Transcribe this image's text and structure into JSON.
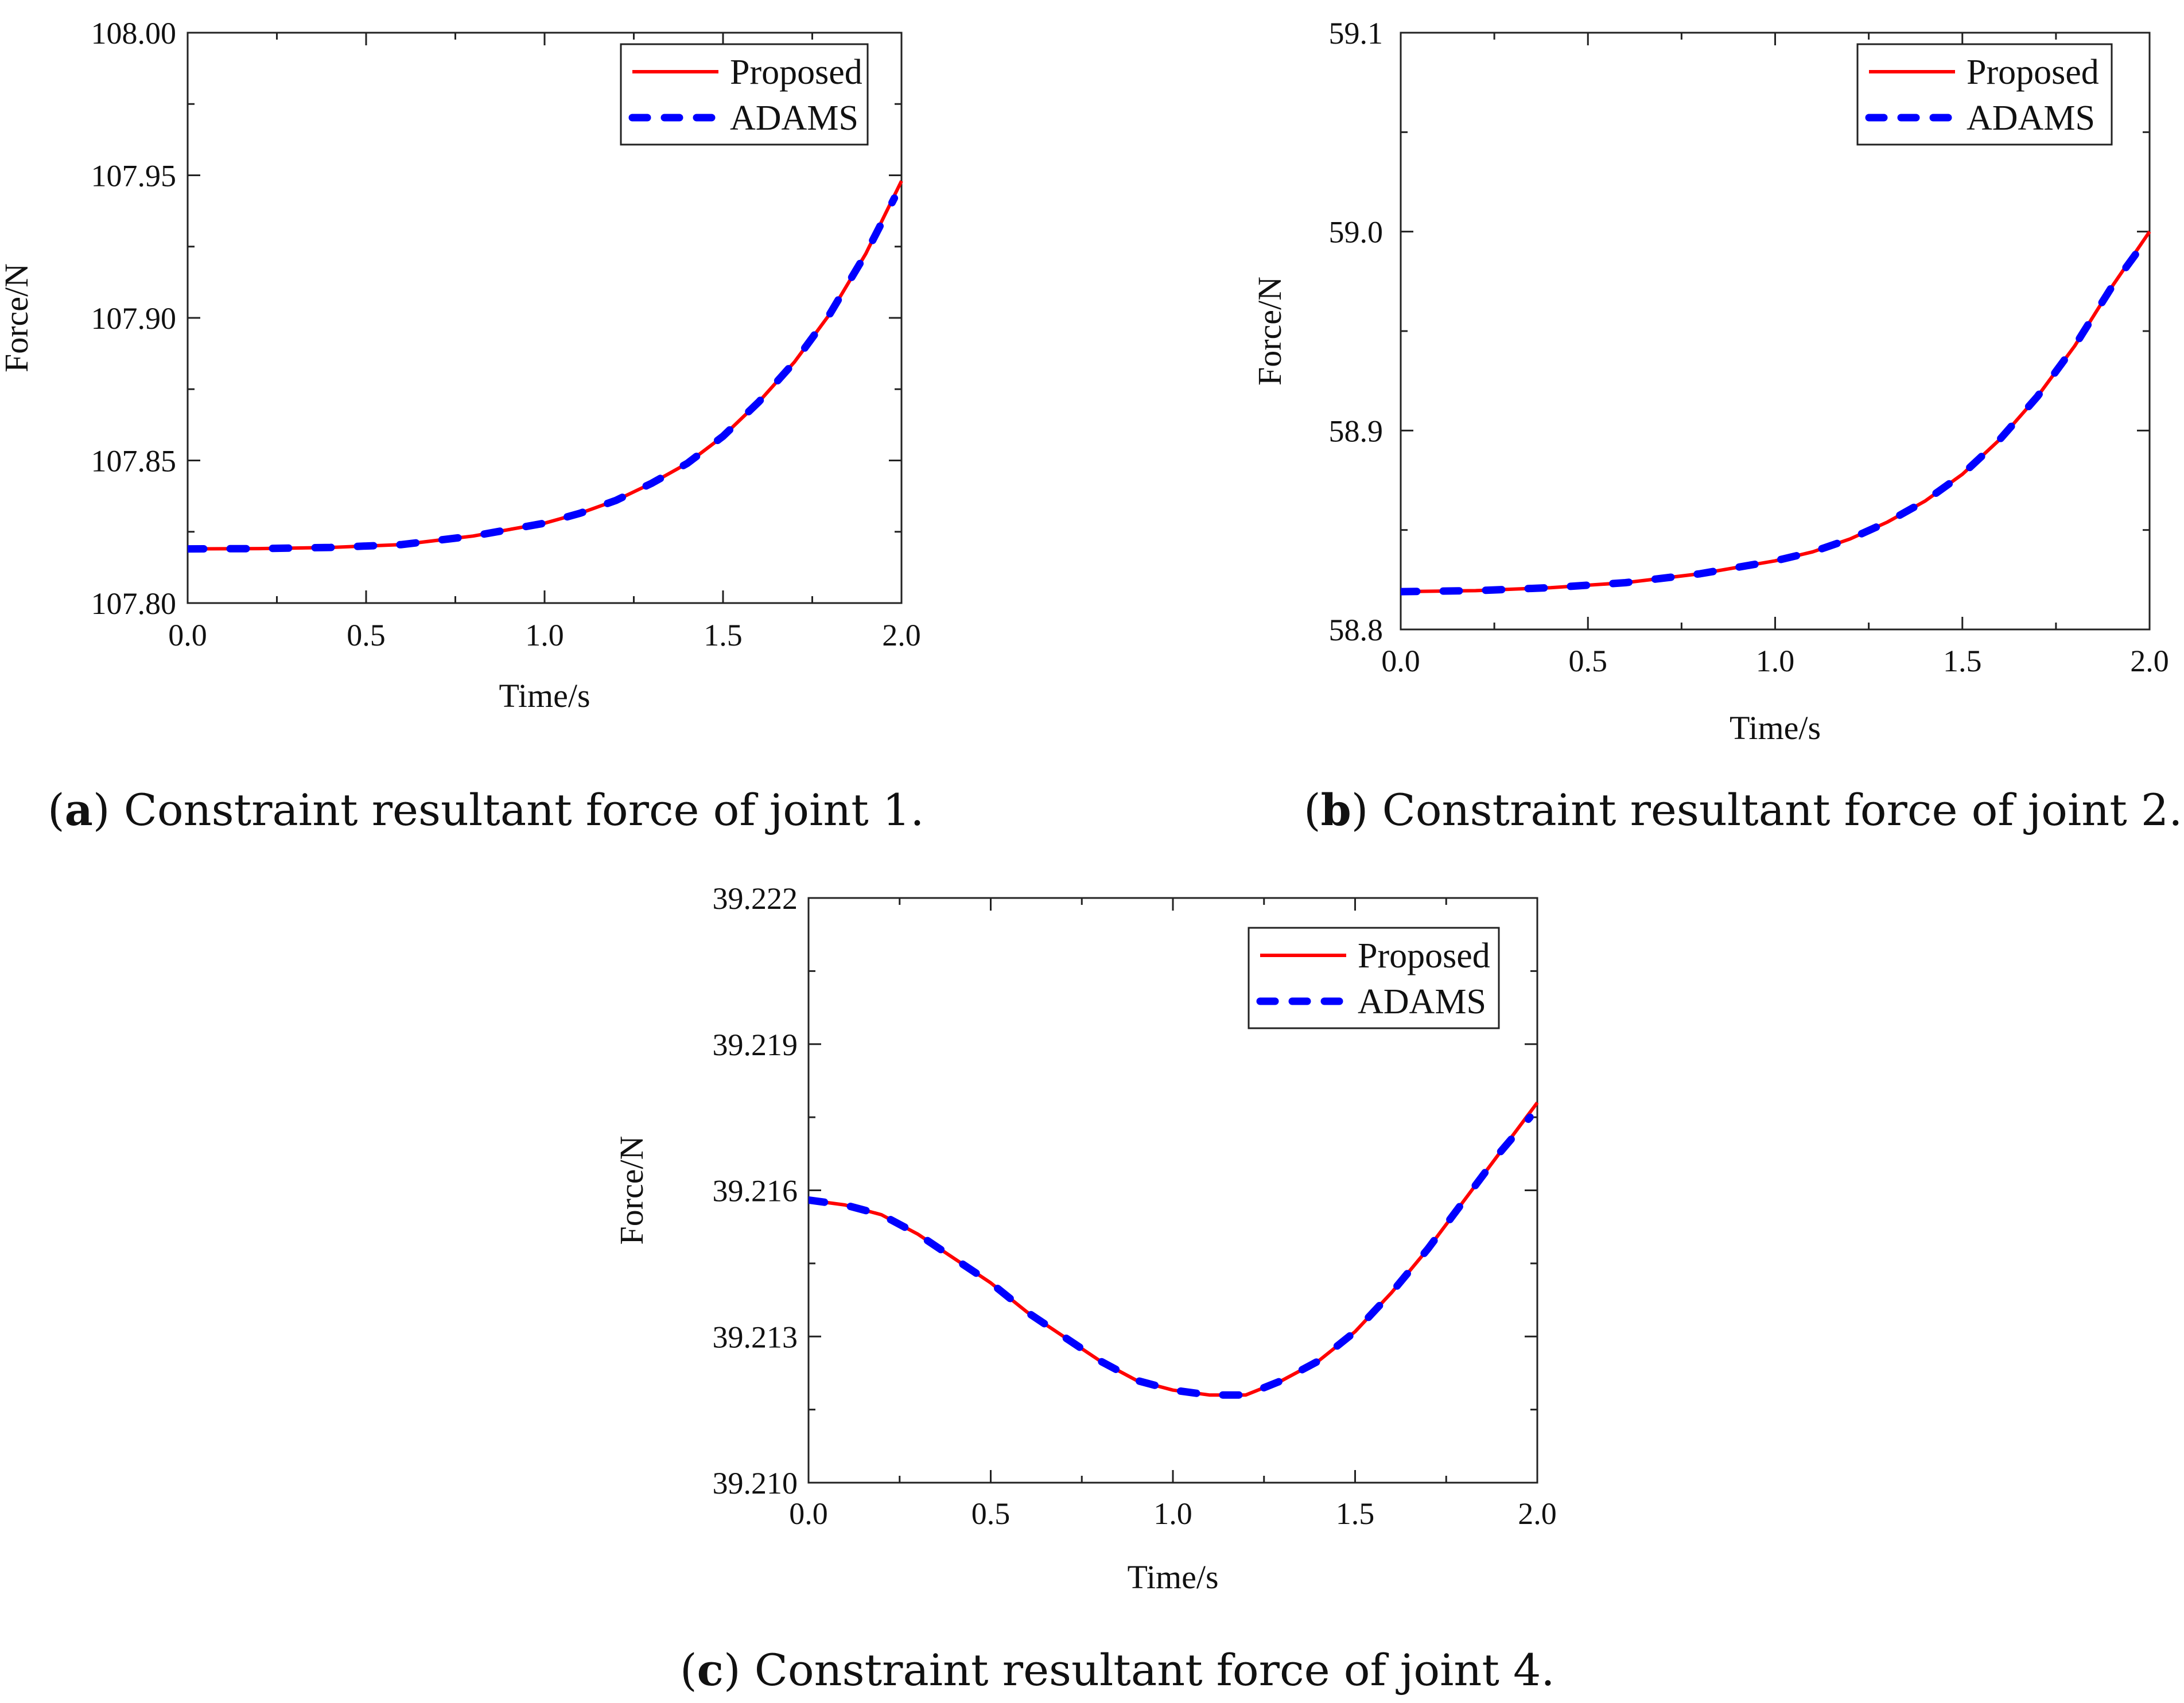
{
  "chart_data": [
    {
      "id": "a",
      "type": "line",
      "caption_letter": "a",
      "caption_text": "Constraint resultant force of joint 1.",
      "xlabel": "Time/s",
      "ylabel": "Force/N",
      "xlim": [
        0.0,
        2.0
      ],
      "ylim": [
        107.8,
        108.0
      ],
      "xticks": [
        "0.0",
        "0.5",
        "1.0",
        "1.5",
        "2.0"
      ],
      "yticks": [
        "107.80",
        "107.85",
        "107.90",
        "107.95",
        "108.00"
      ],
      "legend": [
        "Proposed",
        "ADAMS"
      ],
      "legend_position": "top-right",
      "series": [
        {
          "name": "Proposed",
          "color": "#ff0000",
          "style": "solid",
          "x": [
            0.0,
            0.2,
            0.4,
            0.6,
            0.8,
            1.0,
            1.1,
            1.2,
            1.3,
            1.4,
            1.5,
            1.6,
            1.7,
            1.8,
            1.9,
            2.0
          ],
          "y": [
            107.819,
            107.8191,
            107.8195,
            107.8205,
            107.8235,
            107.828,
            107.8315,
            107.836,
            107.842,
            107.849,
            107.8585,
            107.8705,
            107.8845,
            107.9015,
            107.9225,
            107.948
          ]
        },
        {
          "name": "ADAMS",
          "color": "#0000ff",
          "style": "dashed",
          "x": [
            0.0,
            0.2,
            0.4,
            0.6,
            0.8,
            1.0,
            1.1,
            1.2,
            1.3,
            1.4,
            1.5,
            1.6,
            1.7,
            1.8,
            1.9,
            1.98
          ],
          "y": [
            107.819,
            107.8191,
            107.8195,
            107.8205,
            107.8235,
            107.828,
            107.8315,
            107.836,
            107.842,
            107.849,
            107.8585,
            107.8705,
            107.8845,
            107.9015,
            107.9225,
            107.942
          ]
        }
      ]
    },
    {
      "id": "b",
      "type": "line",
      "caption_letter": "b",
      "caption_text": "Constraint resultant force of joint 2.",
      "xlabel": "Time/s",
      "ylabel": "Force/N",
      "xlim": [
        0.0,
        2.0
      ],
      "ylim": [
        58.8,
        59.1
      ],
      "xticks": [
        "0.0",
        "0.5",
        "1.0",
        "1.5",
        "2.0"
      ],
      "yticks": [
        "58.8",
        "58.9",
        "59.0",
        "59.1"
      ],
      "legend": [
        "Proposed",
        "ADAMS"
      ],
      "legend_position": "top-right",
      "series": [
        {
          "name": "Proposed",
          "color": "#ff0000",
          "style": "solid",
          "x": [
            0.0,
            0.2,
            0.4,
            0.6,
            0.8,
            1.0,
            1.1,
            1.2,
            1.3,
            1.4,
            1.5,
            1.6,
            1.7,
            1.8,
            1.9,
            2.0
          ],
          "y": [
            58.819,
            58.8195,
            58.821,
            58.8235,
            58.828,
            58.8345,
            58.839,
            58.8455,
            58.854,
            58.8645,
            58.878,
            58.8955,
            58.917,
            58.9425,
            58.9725,
            59.0
          ]
        },
        {
          "name": "ADAMS",
          "color": "#0000ff",
          "style": "dashed",
          "x": [
            0.0,
            0.2,
            0.4,
            0.6,
            0.8,
            1.0,
            1.1,
            1.2,
            1.3,
            1.4,
            1.5,
            1.6,
            1.7,
            1.8,
            1.9,
            1.98
          ],
          "y": [
            58.819,
            58.8195,
            58.821,
            58.8235,
            58.828,
            58.8345,
            58.839,
            58.8455,
            58.854,
            58.8645,
            58.878,
            58.8955,
            58.917,
            58.9425,
            58.9725,
            58.993
          ]
        }
      ]
    },
    {
      "id": "c",
      "type": "line",
      "caption_letter": "c",
      "caption_text": "Constraint resultant force of joint 4.",
      "xlabel": "Time/s",
      "ylabel": "Force/N",
      "xlim": [
        0.0,
        2.0
      ],
      "ylim": [
        39.21,
        39.222
      ],
      "xticks": [
        "0.0",
        "0.5",
        "1.0",
        "1.5",
        "2.0"
      ],
      "yticks": [
        "39.210",
        "39.213",
        "39.216",
        "39.219",
        "39.222"
      ],
      "legend": [
        "Proposed",
        "ADAMS"
      ],
      "legend_position": "top-right",
      "series": [
        {
          "name": "Proposed",
          "color": "#ff0000",
          "style": "solid",
          "x": [
            0.0,
            0.1,
            0.2,
            0.3,
            0.4,
            0.5,
            0.6,
            0.7,
            0.8,
            0.9,
            1.0,
            1.1,
            1.15,
            1.2,
            1.3,
            1.4,
            1.5,
            1.6,
            1.7,
            1.8,
            1.9,
            2.0
          ],
          "y": [
            39.2158,
            39.2157,
            39.2155,
            39.2151,
            39.2146,
            39.2141,
            39.2135,
            39.213,
            39.2125,
            39.2121,
            39.2119,
            39.2118,
            39.2118,
            39.2118,
            39.2121,
            39.2125,
            39.2131,
            39.2139,
            39.2148,
            39.2158,
            39.2168,
            39.2178
          ]
        },
        {
          "name": "ADAMS",
          "color": "#0000ff",
          "style": "dashed",
          "x": [
            0.0,
            0.1,
            0.2,
            0.3,
            0.4,
            0.5,
            0.6,
            0.7,
            0.8,
            0.9,
            1.0,
            1.1,
            1.15,
            1.2,
            1.3,
            1.4,
            1.5,
            1.6,
            1.7,
            1.8,
            1.9,
            1.98
          ],
          "y": [
            39.2158,
            39.2157,
            39.2155,
            39.2151,
            39.2146,
            39.2141,
            39.2135,
            39.213,
            39.2125,
            39.2121,
            39.2119,
            39.2118,
            39.2118,
            39.2118,
            39.2121,
            39.2125,
            39.2131,
            39.2139,
            39.2148,
            39.2158,
            39.2168,
            39.2175
          ]
        }
      ]
    }
  ]
}
